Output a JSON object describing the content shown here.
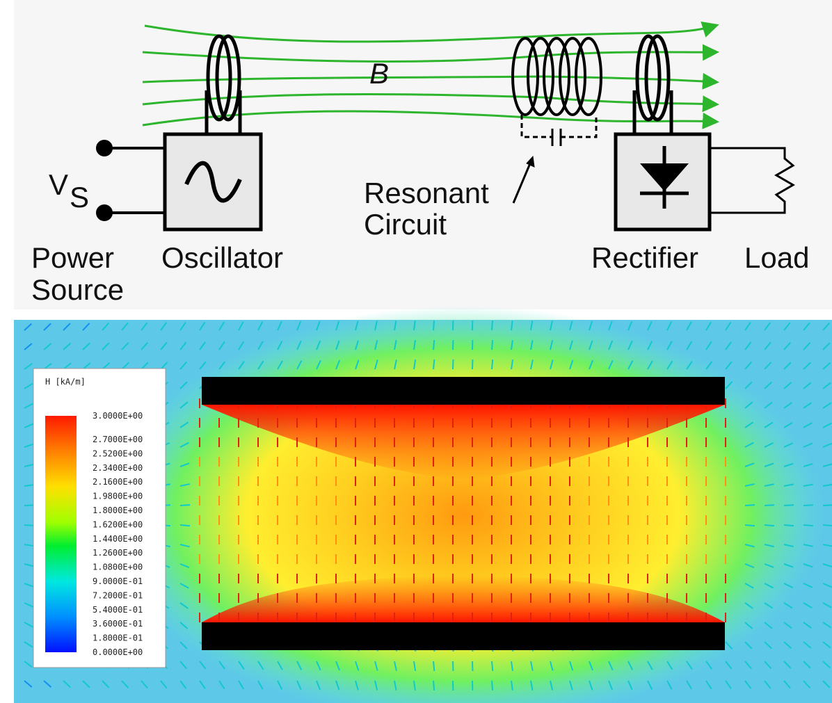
{
  "diagram": {
    "field_label": "B",
    "source_symbol": "V",
    "source_subscript": "S",
    "resonant_label": [
      "Resonant",
      "Circuit"
    ],
    "power_source_label": [
      "Power",
      "Source"
    ],
    "oscillator_label": "Oscillator",
    "rectifier_label": "Rectifier",
    "load_label": "Load"
  },
  "simulation": {
    "legend_title": "H [kA/m]",
    "legend_labels": [
      "3.0000E+00",
      "2.7000E+00",
      "2.5200E+00",
      "2.3400E+00",
      "2.1600E+00",
      "1.9800E+00",
      "1.8000E+00",
      "1.6200E+00",
      "1.4400E+00",
      "1.2600E+00",
      "1.0800E+00",
      "9.0000E-01",
      "7.2000E-01",
      "5.4000E-01",
      "3.6000E-01",
      "1.8000E-01",
      "0.0000E+00"
    ]
  }
}
